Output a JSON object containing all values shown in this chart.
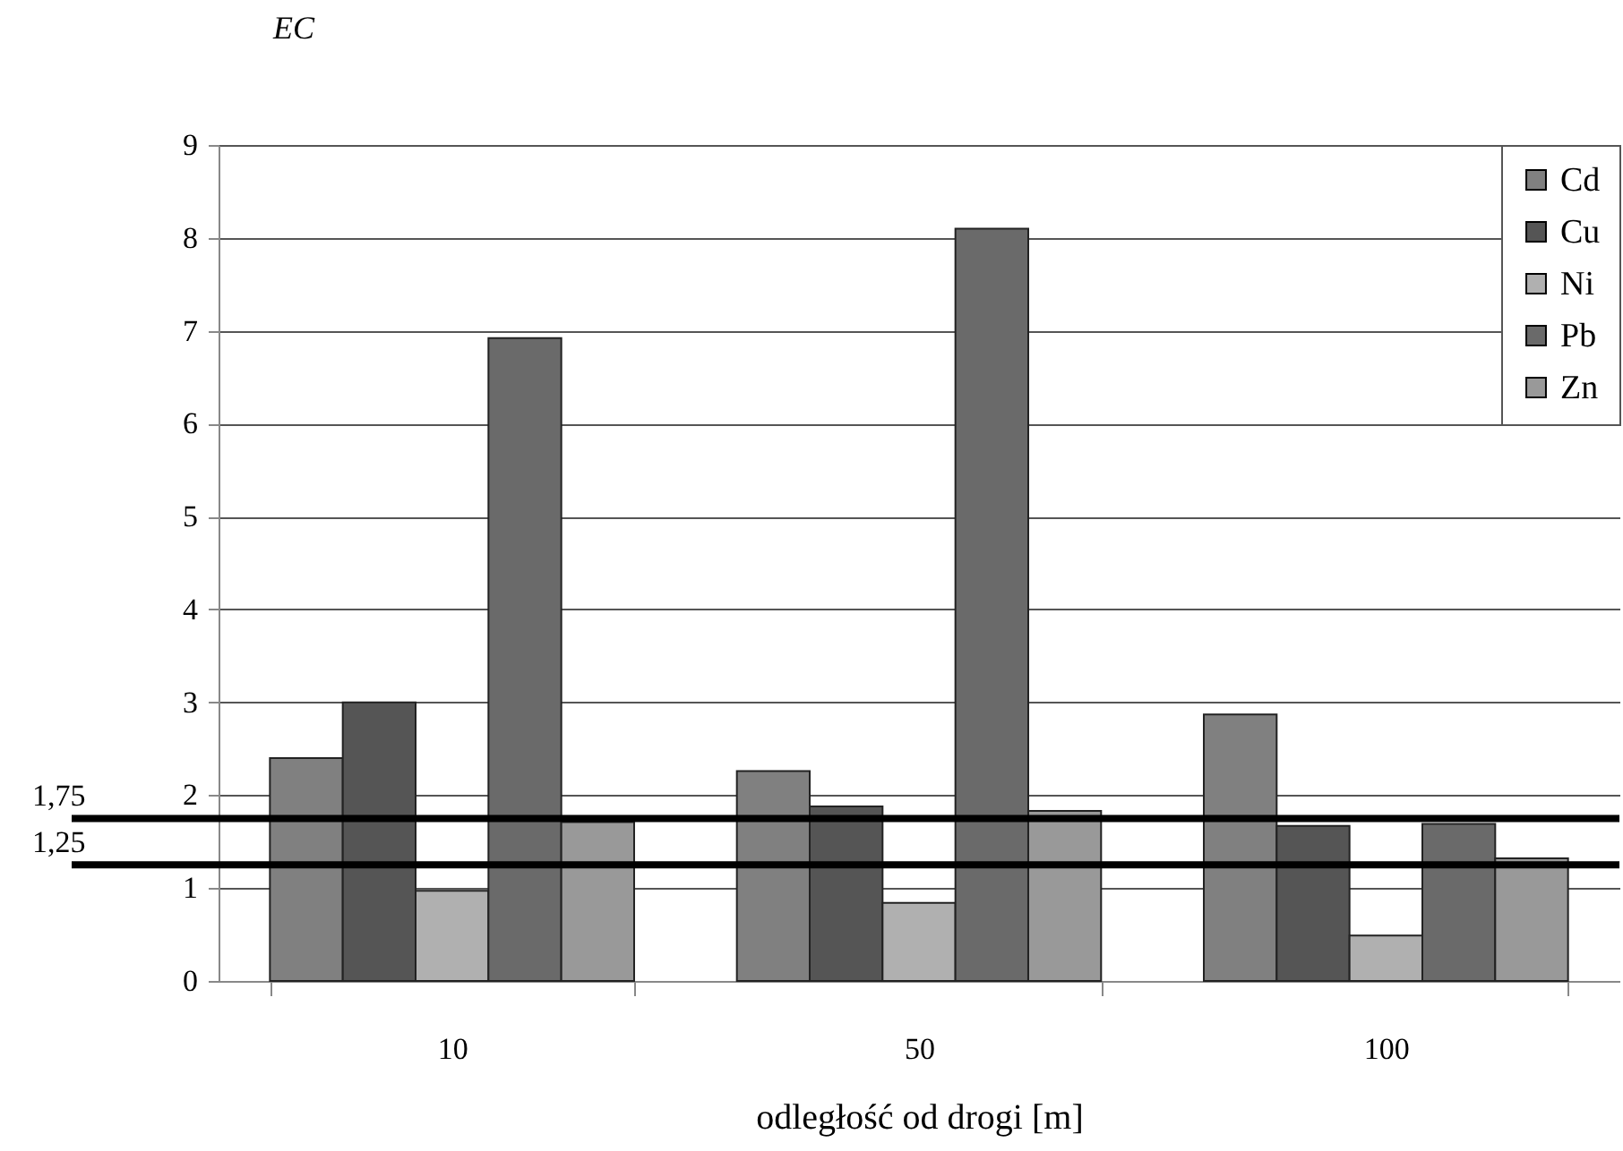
{
  "chart_data": {
    "type": "bar",
    "ylabel": "EC",
    "xlabel": "odległość od drogi [m]",
    "categories": [
      "10",
      "50",
      "100"
    ],
    "series": [
      {
        "name": "Cd",
        "color": "#808080",
        "values": [
          2.4,
          2.26,
          2.87
        ]
      },
      {
        "name": "Cu",
        "color": "#555555",
        "values": [
          3.0,
          1.88,
          1.67
        ]
      },
      {
        "name": "Ni",
        "color": "#b0b0b0",
        "values": [
          0.97,
          0.84,
          0.49
        ]
      },
      {
        "name": "Pb",
        "color": "#6a6a6a",
        "values": [
          6.92,
          8.1,
          1.69
        ]
      },
      {
        "name": "Zn",
        "color": "#999999",
        "values": [
          1.71,
          1.83,
          1.32
        ]
      }
    ],
    "ylim": [
      0,
      9
    ],
    "yticks": [
      0,
      1,
      2,
      3,
      4,
      5,
      6,
      7,
      8,
      9
    ],
    "grid": "y",
    "legend": "top right",
    "ref_lines": [
      {
        "axis": "y",
        "value": 1.75,
        "label": "1,75",
        "color": "#000000"
      },
      {
        "axis": "y",
        "value": 1.25,
        "label": "1,25",
        "color": "#000000"
      }
    ]
  }
}
